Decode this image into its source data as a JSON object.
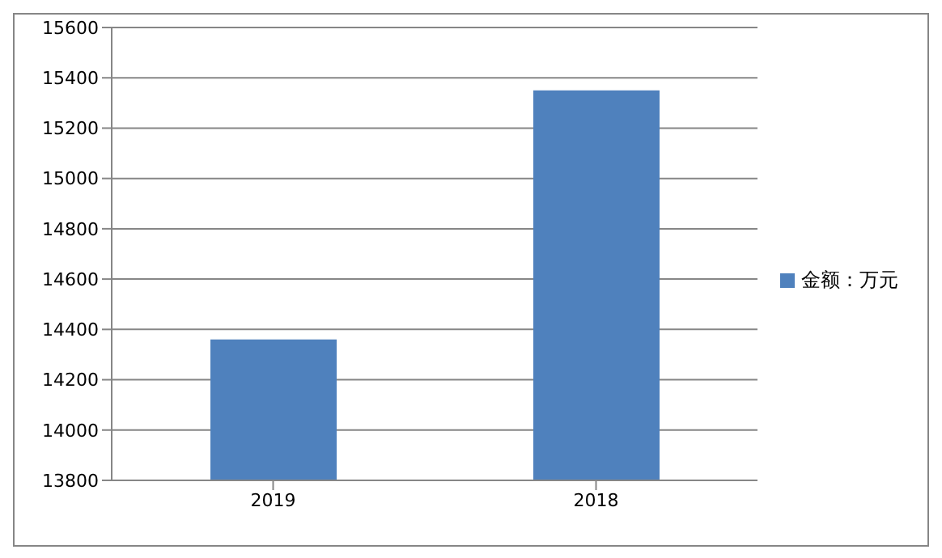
{
  "chart_data": {
    "type": "bar",
    "categories": [
      "2019",
      "2018"
    ],
    "series": [
      {
        "name": "金额：万元",
        "color": "#4f81bd",
        "values": [
          14360,
          15350
        ]
      }
    ],
    "ylim": [
      13800,
      15600
    ],
    "yticks": [
      13800,
      14000,
      14200,
      14400,
      14600,
      14800,
      15000,
      15200,
      15400,
      15600
    ],
    "grid": "y",
    "legend": "right"
  }
}
